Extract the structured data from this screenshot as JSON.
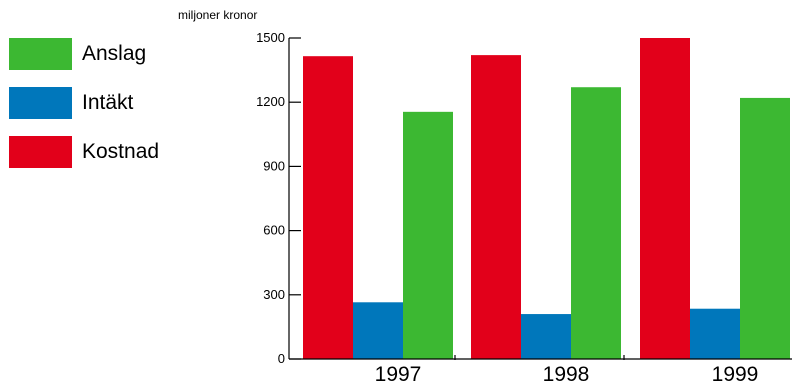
{
  "chart_data": {
    "type": "bar",
    "ylabel": "miljoner kronor",
    "categories": [
      "1997",
      "1998",
      "1999"
    ],
    "ylim": [
      0,
      1500
    ],
    "yticks": [
      0,
      300,
      600,
      900,
      1200,
      1500
    ],
    "series": [
      {
        "name": "Kostnad",
        "color": "#e2001a",
        "values": [
          1415,
          1420,
          1500
        ]
      },
      {
        "name": "Intäkt",
        "color": "#0077bb",
        "values": [
          265,
          210,
          235
        ]
      },
      {
        "name": "Anslag",
        "color": "#3cb832",
        "values": [
          1155,
          1270,
          1220
        ]
      }
    ],
    "legend": [
      {
        "name": "Anslag",
        "color": "#3cb832"
      },
      {
        "name": "Intäkt",
        "color": "#0077bb"
      },
      {
        "name": "Kostnad",
        "color": "#e2001a"
      }
    ],
    "legend_position": "left",
    "grid": false
  }
}
